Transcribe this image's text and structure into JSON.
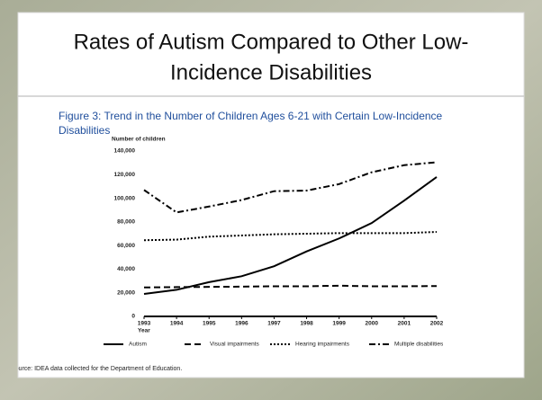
{
  "slide_title": [
    "Rates of Autism Compared to Other Low-",
    "Incidence Disabilities"
  ],
  "source": "Source: IDEA data collected for the Department of Education.",
  "chart_data": {
    "type": "line",
    "title": [
      "Figure 3: Trend in the Number of Children Ages 6-21 with Certain Low-Incidence",
      "Disabilities"
    ],
    "y_label": "Number of children",
    "x_label": "Year",
    "x": [
      1993,
      1994,
      1995,
      1996,
      1997,
      1998,
      1999,
      2000,
      2001,
      2002
    ],
    "xlim": [
      1993,
      2002
    ],
    "xticks": [
      1993,
      1994,
      1995,
      1996,
      1997,
      1998,
      1999,
      2000,
      2001,
      2002
    ],
    "ylim": [
      0,
      140000
    ],
    "yticks": [
      0,
      {
        "value": 20000,
        "label": "20,000"
      },
      {
        "value": 40000,
        "label": "40,000"
      },
      {
        "value": 60000,
        "label": "60,000"
      },
      {
        "value": 80000,
        "label": "80,000"
      },
      {
        "value": 100000,
        "label": "100,000"
      },
      {
        "value": 120000,
        "label": "120,000"
      },
      {
        "value": 140000,
        "label": "140,000"
      }
    ],
    "grid": false,
    "series": [
      {
        "name": "Autism",
        "color": "#000000",
        "line_style": "solid",
        "values": [
          19000,
          22500,
          29000,
          34000,
          42500,
          55000,
          66000,
          79000,
          98000,
          118000
        ]
      },
      {
        "name": "Visual impairments",
        "color": "#000000",
        "line_style": "dashed",
        "values": [
          24500,
          24800,
          25000,
          25200,
          25500,
          25500,
          26000,
          25500,
          25500,
          25700
        ]
      },
      {
        "name": "Hearing impairments",
        "color": "#000000",
        "line_style": "dotted",
        "values": [
          64500,
          65000,
          67500,
          68500,
          69500,
          70000,
          70500,
          70500,
          70500,
          71500
        ]
      },
      {
        "name": "Multiple disabilities",
        "color": "#000000",
        "line_style": "dashdot",
        "values": [
          107000,
          88000,
          93000,
          98500,
          106000,
          106500,
          112000,
          122000,
          128000,
          130500
        ]
      }
    ]
  }
}
